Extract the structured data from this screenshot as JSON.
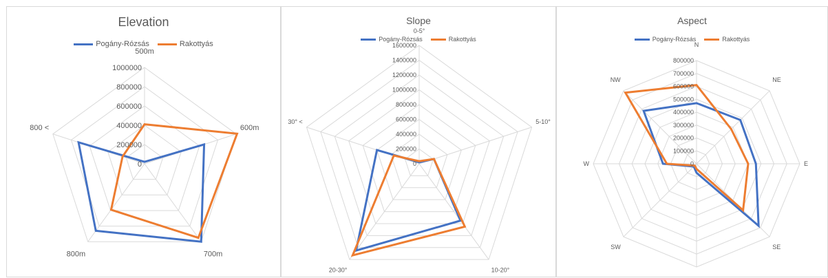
{
  "colors": {
    "series_1": "#4472c4",
    "series_2": "#ed7d31",
    "grid": "#d9d9d9",
    "text": "#595959"
  },
  "chart_data": [
    {
      "type": "radar",
      "title": "Elevation",
      "categories": [
        "500m",
        "600m",
        "700m",
        "800m",
        "800 <"
      ],
      "rmax": 1000000,
      "ticks": [
        0,
        200000,
        400000,
        600000,
        800000,
        1000000
      ],
      "tick_labels": [
        "0",
        "200000",
        "400000",
        "600000",
        "800000",
        "1000000"
      ],
      "legend_position": "top",
      "series": [
        {
          "name": "Pogány-Rózsás",
          "values": [
            20000,
            650000,
            1000000,
            860000,
            720000
          ]
        },
        {
          "name": "Rakottyás",
          "values": [
            410000,
            1010000,
            950000,
            590000,
            240000
          ]
        }
      ]
    },
    {
      "type": "radar",
      "title": "Slope",
      "categories": [
        "0-5°",
        "5-10°",
        "10-20°",
        "20-30°",
        "30° <"
      ],
      "rmax": 1600000,
      "ticks": [
        0,
        200000,
        400000,
        600000,
        800000,
        1000000,
        1200000,
        1400000,
        1600000
      ],
      "tick_labels": [
        "0",
        "200000",
        "400000",
        "600000",
        "800000",
        "1000000",
        "1200000",
        "1400000",
        "1600000"
      ],
      "legend_position": "top",
      "series": [
        {
          "name": "Pogány-Rózsás",
          "values": [
            20000,
            210000,
            950000,
            1450000,
            600000
          ]
        },
        {
          "name": "Rakottyás",
          "values": [
            35000,
            210000,
            1050000,
            1530000,
            360000
          ]
        }
      ]
    },
    {
      "type": "radar",
      "title": "Aspect",
      "categories": [
        "N",
        "NE",
        "E",
        "SE",
        "S",
        "SW",
        "W",
        "NW"
      ],
      "rmax": 800000,
      "ticks": [
        0,
        100000,
        200000,
        300000,
        400000,
        500000,
        600000,
        700000,
        800000
      ],
      "tick_labels": [
        "0",
        "100000",
        "200000",
        "300000",
        "400000",
        "500000",
        "600000",
        "700000",
        "800000"
      ],
      "legend_position": "top",
      "series": [
        {
          "name": "Pogány-Rózsás",
          "values": [
            470000,
            480000,
            460000,
            680000,
            70000,
            30000,
            260000,
            580000
          ]
        },
        {
          "name": "Rakottyás",
          "values": [
            610000,
            380000,
            400000,
            510000,
            40000,
            20000,
            230000,
            780000
          ]
        }
      ]
    }
  ]
}
